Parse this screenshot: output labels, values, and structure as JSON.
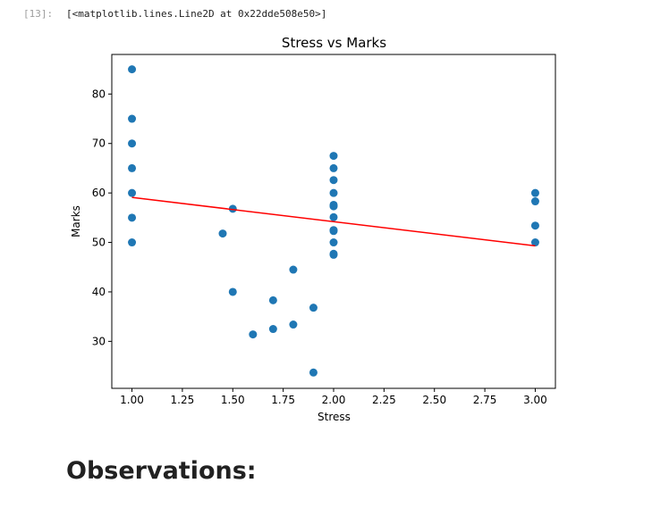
{
  "cell": {
    "prompt": "[13]:",
    "output_text": "[<matplotlib.lines.Line2D at 0x22dde508e50>]"
  },
  "chart_data": {
    "type": "scatter",
    "title": "Stress vs Marks",
    "xlabel": "Stress",
    "ylabel": "Marks",
    "xlim": [
      0.9,
      3.1
    ],
    "ylim": [
      20.5,
      88
    ],
    "xticks": [
      "1.00",
      "1.25",
      "1.50",
      "1.75",
      "2.00",
      "2.25",
      "2.50",
      "2.75",
      "3.00"
    ],
    "yticks": [
      "30",
      "40",
      "50",
      "60",
      "70",
      "80"
    ],
    "grid": false,
    "point_color": "#1f77b4",
    "line_color": "#ff0000",
    "points": [
      {
        "x": 1.0,
        "y": 85
      },
      {
        "x": 1.0,
        "y": 75
      },
      {
        "x": 1.0,
        "y": 70
      },
      {
        "x": 1.0,
        "y": 65
      },
      {
        "x": 1.0,
        "y": 60
      },
      {
        "x": 1.0,
        "y": 55
      },
      {
        "x": 1.0,
        "y": 50
      },
      {
        "x": 1.45,
        "y": 51.8
      },
      {
        "x": 1.5,
        "y": 56.8
      },
      {
        "x": 1.5,
        "y": 40
      },
      {
        "x": 1.6,
        "y": 31.4
      },
      {
        "x": 1.7,
        "y": 38.3
      },
      {
        "x": 1.7,
        "y": 32.5
      },
      {
        "x": 1.8,
        "y": 44.5
      },
      {
        "x": 1.8,
        "y": 33.4
      },
      {
        "x": 1.9,
        "y": 36.8
      },
      {
        "x": 1.9,
        "y": 23.7
      },
      {
        "x": 2.0,
        "y": 67.5
      },
      {
        "x": 2.0,
        "y": 65
      },
      {
        "x": 2.0,
        "y": 62.6
      },
      {
        "x": 2.0,
        "y": 60
      },
      {
        "x": 2.0,
        "y": 57.6
      },
      {
        "x": 2.0,
        "y": 57.3
      },
      {
        "x": 2.0,
        "y": 55.1
      },
      {
        "x": 2.0,
        "y": 52.5
      },
      {
        "x": 2.0,
        "y": 52.3
      },
      {
        "x": 2.0,
        "y": 50
      },
      {
        "x": 2.0,
        "y": 47.7
      },
      {
        "x": 2.0,
        "y": 47.5
      },
      {
        "x": 3.0,
        "y": 60
      },
      {
        "x": 3.0,
        "y": 58.3
      },
      {
        "x": 3.0,
        "y": 53.4
      },
      {
        "x": 3.0,
        "y": 50
      }
    ],
    "fit_line": {
      "x": [
        1.0,
        3.0
      ],
      "y": [
        59.1,
        49.3
      ]
    }
  },
  "markdown": {
    "heading": "Observations:"
  }
}
